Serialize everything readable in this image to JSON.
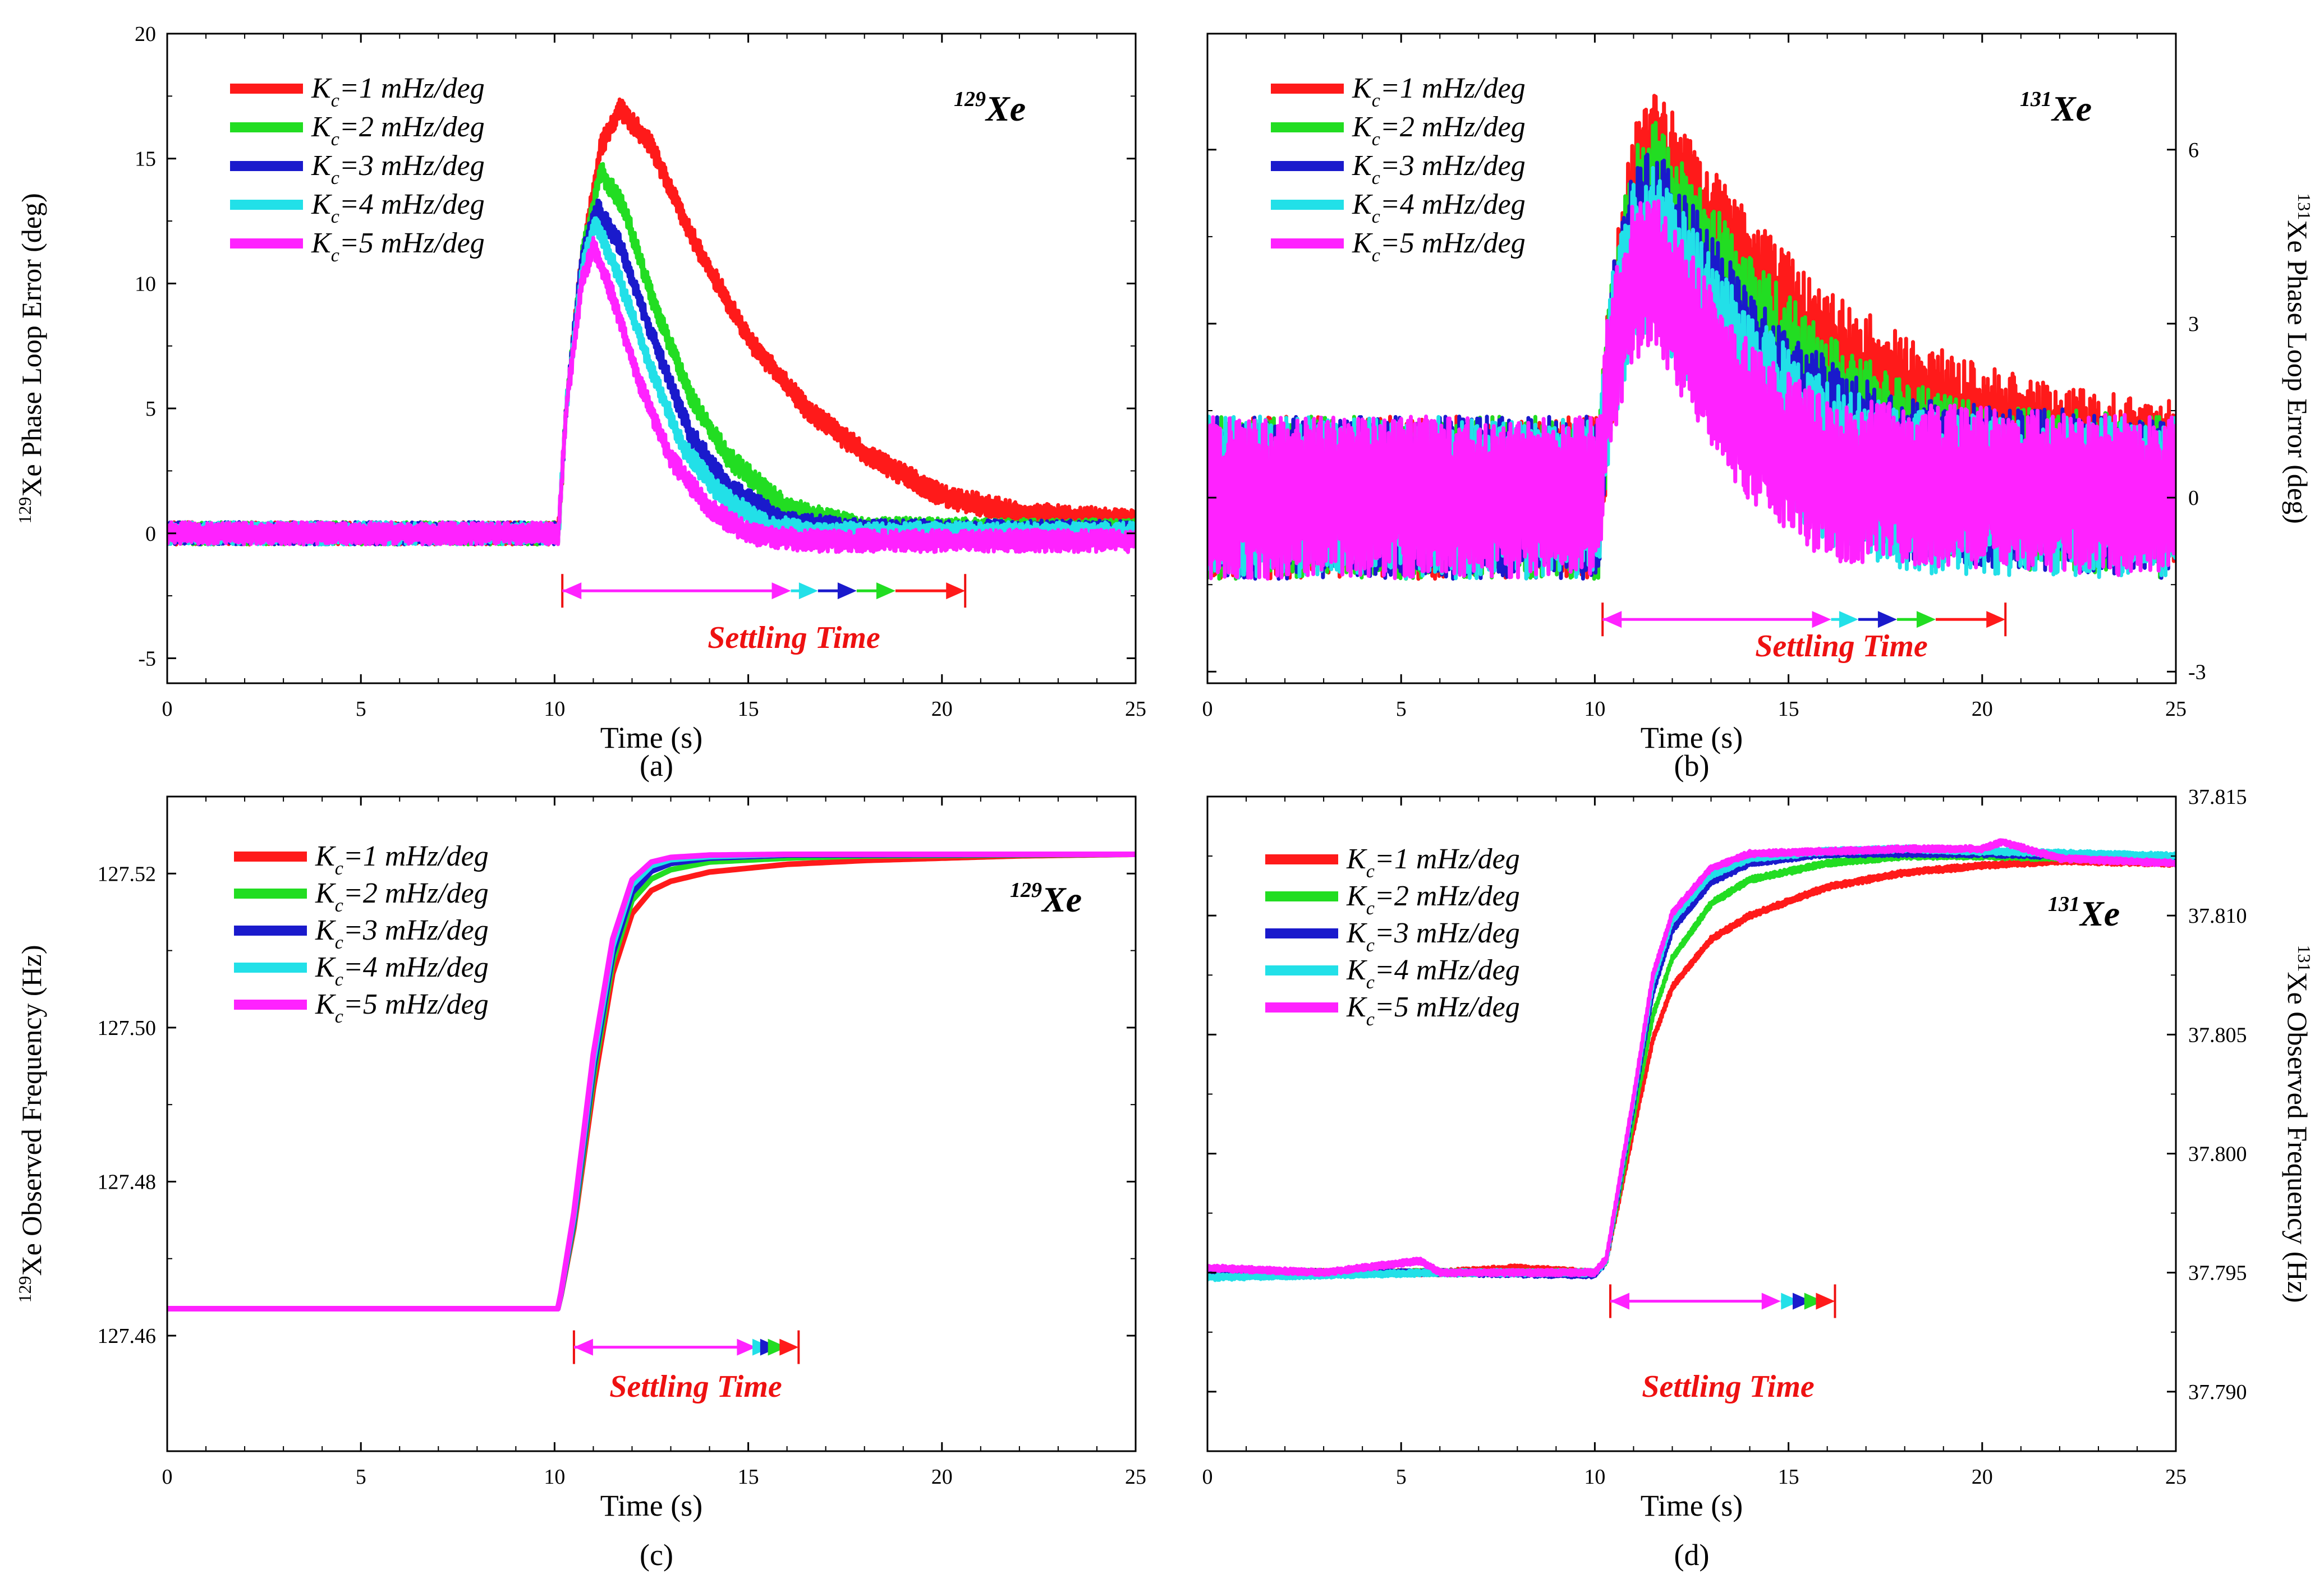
{
  "colors": {
    "k1": "#ff1a1a",
    "k2": "#22dd22",
    "k3": "#1a1acc",
    "k4": "#22e0e8",
    "k5": "#ff22ff",
    "annotation": "#ee1111",
    "axis": "#000000"
  },
  "legend": {
    "k_symbol": "K",
    "k_subscript": "c",
    "entries": [
      "=1 mHz/deg",
      "=2 mHz/deg",
      "=3 mHz/deg",
      "=4 mHz/deg",
      "=5 mHz/deg"
    ]
  },
  "chart_data": [
    {
      "type": "line",
      "panel_label": "(a)",
      "ylabel_sup": "129",
      "ylabel": "Xe Phase Loop Error (deg)",
      "xlabel": "Time (s)",
      "isotope_sup": "129",
      "isotope": "Xe",
      "annotation": "Settling Time",
      "xlim": [
        0,
        25
      ],
      "ylim": [
        -6,
        20
      ],
      "xticks": [
        0,
        5,
        10,
        15,
        20,
        25
      ],
      "yticks": [
        -5,
        0,
        5,
        10,
        15,
        20
      ],
      "y_axis_side": "left",
      "legend_position": "top-left",
      "step_time_s": 10.2,
      "settling_time_s": [
        20.6,
        18.8,
        17.8,
        16.8,
        16.1
      ],
      "series": [
        {
          "name": "Kc=1 mHz/deg",
          "x": [
            0,
            10.1,
            10.3,
            10.7,
            11.2,
            11.7,
            12.5,
            13.5,
            15,
            16.5,
            18,
            20,
            22,
            25
          ],
          "y": [
            0,
            0,
            5,
            11,
            15.5,
            17,
            15.5,
            12,
            7.8,
            5,
            3.2,
            1.5,
            0.8,
            0.5
          ],
          "amplitude": 0.45
        },
        {
          "name": "Kc=2 mHz/deg",
          "x": [
            0,
            10.1,
            10.3,
            10.7,
            11.2,
            11.8,
            12.5,
            13.5,
            14.5,
            16,
            18,
            25
          ],
          "y": [
            0,
            0,
            5,
            11,
            14.5,
            13,
            9.5,
            5.5,
            3,
            1,
            0.2,
            0.1
          ],
          "amplitude": 0.45
        },
        {
          "name": "Kc=3 mHz/deg",
          "x": [
            0,
            10.1,
            10.3,
            10.7,
            11.1,
            11.7,
            12.5,
            13.5,
            14.5,
            16,
            18,
            25
          ],
          "y": [
            0,
            0,
            5,
            11,
            13,
            11.5,
            8,
            4,
            1.8,
            0.4,
            0.1,
            0.05
          ],
          "amplitude": 0.45
        },
        {
          "name": "Kc=4 mHz/deg",
          "x": [
            0,
            10.1,
            10.3,
            10.7,
            11.05,
            11.6,
            12.4,
            13.3,
            14.3,
            15.5,
            17,
            25
          ],
          "y": [
            0,
            0,
            5,
            10.5,
            12.5,
            10.5,
            7,
            3.5,
            1.5,
            0.3,
            0,
            0
          ],
          "amplitude": 0.45
        },
        {
          "name": "Kc=5 mHz/deg",
          "x": [
            0,
            10.1,
            10.3,
            10.7,
            11,
            11.5,
            12.2,
            13,
            14,
            15,
            16.5,
            25
          ],
          "y": [
            0,
            0,
            5,
            10,
            11.5,
            9.5,
            6,
            3,
            1,
            0,
            -0.3,
            -0.3
          ],
          "amplitude": 0.45
        }
      ]
    },
    {
      "type": "line",
      "panel_label": "(b)",
      "ylabel_sup": "131",
      "ylabel": "Xe Phase Loop Error (deg)",
      "xlabel": "Time (s)",
      "isotope_sup": "131",
      "isotope": "Xe",
      "annotation": "Settling Time",
      "xlim": [
        0,
        25
      ],
      "ylim": [
        -3.2,
        8
      ],
      "xticks": [
        0,
        5,
        10,
        15,
        20,
        25
      ],
      "yticks": [
        -3,
        0,
        3,
        6
      ],
      "y_axis_side": "right",
      "legend_position": "top-left",
      "step_time_s": 10.2,
      "settling_time_s": [
        20.6,
        18.8,
        17.8,
        16.8,
        16.1
      ],
      "series": [
        {
          "name": "Kc=1 mHz/deg",
          "x": [
            0,
            10.1,
            10.4,
            11,
            11.6,
            12.5,
            14,
            16,
            18,
            20,
            22,
            25
          ],
          "y": [
            0,
            0,
            2.5,
            5,
            5.6,
            4.8,
            3.5,
            2.2,
            1.4,
            0.9,
            0.5,
            0.3
          ],
          "amplitude": 1.4
        },
        {
          "name": "Kc=2 mHz/deg",
          "x": [
            0,
            10.1,
            10.4,
            11,
            11.6,
            12.5,
            14,
            16,
            18,
            20,
            25
          ],
          "y": [
            0,
            0,
            2.5,
            4.6,
            5.1,
            4.2,
            2.8,
            1.4,
            0.6,
            0.2,
            0
          ],
          "amplitude": 1.4
        },
        {
          "name": "Kc=3 mHz/deg",
          "x": [
            0,
            10.1,
            10.4,
            11,
            11.5,
            12.5,
            14,
            16,
            18,
            25
          ],
          "y": [
            0,
            0,
            2.5,
            4.3,
            4.7,
            3.7,
            2.2,
            1,
            0.3,
            0
          ],
          "amplitude": 1.4
        },
        {
          "name": "Kc=4 mHz/deg",
          "x": [
            0,
            10.1,
            10.4,
            11,
            11.5,
            12.5,
            14,
            16,
            18,
            25
          ],
          "y": [
            0,
            0,
            2.4,
            4,
            4.3,
            3.3,
            1.8,
            0.6,
            0.1,
            0
          ],
          "amplitude": 1.4
        },
        {
          "name": "Kc=5 mHz/deg",
          "x": [
            0,
            10.1,
            10.4,
            11,
            11.5,
            12.5,
            14,
            16,
            25
          ],
          "y": [
            0,
            0,
            2.3,
            3.7,
            3.9,
            2.8,
            1.3,
            0.3,
            0
          ],
          "amplitude": 1.4
        }
      ]
    },
    {
      "type": "line",
      "panel_label": "(c)",
      "ylabel_sup": "129",
      "ylabel": "Xe Observed Frequency (Hz)",
      "xlabel": "Time (s)",
      "isotope_sup": "129",
      "isotope": "Xe",
      "annotation": "Settling Time",
      "xlim": [
        0,
        25
      ],
      "ylim": [
        127.445,
        127.53
      ],
      "xticks": [
        0,
        5,
        10,
        15,
        20,
        25
      ],
      "yticks": [
        127.46,
        127.48,
        127.5,
        127.52
      ],
      "y_axis_side": "left",
      "legend_position": "top-left",
      "step_time_s": 10.5,
      "settling_time_s": [
        16.3,
        16.0,
        15.8,
        15.6,
        15.2
      ],
      "series": [
        {
          "name": "Kc=1 mHz/deg",
          "x": [
            0,
            10.1,
            10.5,
            11,
            11.5,
            12,
            12.5,
            13,
            14,
            16,
            18,
            20,
            22,
            25
          ],
          "y": [
            127.4635,
            127.4635,
            127.474,
            127.492,
            127.507,
            127.5148,
            127.5178,
            127.519,
            127.5202,
            127.5212,
            127.5217,
            127.522,
            127.5223,
            127.5225
          ],
          "amplitude": 0
        },
        {
          "name": "Kc=2 mHz/deg",
          "x": [
            0,
            10.1,
            10.5,
            11,
            11.5,
            12,
            12.5,
            13,
            14,
            16,
            18,
            25
          ],
          "y": [
            127.4635,
            127.4635,
            127.4745,
            127.4935,
            127.5085,
            127.5165,
            127.5193,
            127.5205,
            127.5215,
            127.522,
            127.5223,
            127.5225
          ],
          "amplitude": 0
        },
        {
          "name": "Kc=3 mHz/deg",
          "x": [
            0,
            10.1,
            10.5,
            11,
            11.5,
            12,
            12.5,
            13,
            14,
            16,
            25
          ],
          "y": [
            127.4635,
            127.4635,
            127.475,
            127.4945,
            127.5095,
            127.5175,
            127.5203,
            127.5213,
            127.522,
            127.5224,
            127.5225
          ],
          "amplitude": 0
        },
        {
          "name": "Kc=4 mHz/deg",
          "x": [
            0,
            10.1,
            10.5,
            11,
            11.5,
            12,
            12.5,
            13,
            14,
            16,
            25
          ],
          "y": [
            127.4635,
            127.4635,
            127.4755,
            127.4955,
            127.5105,
            127.5185,
            127.521,
            127.5218,
            127.5222,
            127.5225,
            127.5225
          ],
          "amplitude": 0
        },
        {
          "name": "Kc=5 mHz/deg",
          "x": [
            0,
            10.1,
            10.5,
            11,
            11.5,
            12,
            12.5,
            13,
            14,
            16,
            25
          ],
          "y": [
            127.4635,
            127.4635,
            127.476,
            127.4965,
            127.5115,
            127.5192,
            127.5215,
            127.5221,
            127.5224,
            127.5225,
            127.5225
          ],
          "amplitude": 0
        }
      ]
    },
    {
      "type": "line",
      "panel_label": "(d)",
      "ylabel_sup": "131",
      "ylabel": "Xe Observed Frequency (Hz)",
      "xlabel": "Time (s)",
      "isotope_sup": "131",
      "isotope": "Xe",
      "annotation": "Settling Time",
      "xlim": [
        0,
        25
      ],
      "ylim": [
        37.7875,
        37.815
      ],
      "xticks": [
        0,
        5,
        10,
        15,
        20,
        25
      ],
      "yticks": [
        37.79,
        37.795,
        37.8,
        37.805,
        37.81,
        37.815
      ],
      "y_axis_side": "right",
      "legend_position": "top-left",
      "step_time_s": 10.4,
      "settling_time_s": [
        16.2,
        15.9,
        15.6,
        15.3,
        14.8
      ],
      "series": [
        {
          "name": "Kc=1 mHz/deg",
          "x": [
            0,
            3,
            6,
            8,
            10,
            10.3,
            11,
            11.5,
            12,
            13,
            14,
            16,
            18,
            20,
            22,
            25
          ],
          "y": [
            37.795,
            37.795,
            37.795,
            37.7952,
            37.795,
            37.7955,
            37.801,
            37.8048,
            37.807,
            37.809,
            37.81,
            37.8112,
            37.8118,
            37.8121,
            37.8123,
            37.8122
          ],
          "amplitude": 0.00012
        },
        {
          "name": "Kc=2 mHz/deg",
          "x": [
            0,
            3,
            6,
            10,
            10.3,
            11,
            11.5,
            12,
            13,
            14,
            16,
            18,
            20,
            25
          ],
          "y": [
            37.795,
            37.795,
            37.795,
            37.795,
            37.7955,
            37.8015,
            37.8058,
            37.8082,
            37.8105,
            37.8115,
            37.8122,
            37.8125,
            37.8125,
            37.8123
          ],
          "amplitude": 0.00012
        },
        {
          "name": "Kc=3 mHz/deg",
          "x": [
            0,
            3,
            6,
            10,
            10.3,
            11,
            11.5,
            12,
            13,
            14,
            16,
            18,
            20,
            25
          ],
          "y": [
            37.795,
            37.795,
            37.795,
            37.7949,
            37.7955,
            37.802,
            37.8068,
            37.8094,
            37.8114,
            37.8122,
            37.8126,
            37.8126,
            37.8126,
            37.8124
          ],
          "amplitude": 0.00012
        },
        {
          "name": "Kc=4 mHz/deg",
          "x": [
            0,
            3,
            6,
            10,
            10.3,
            11,
            11.5,
            12,
            13,
            14,
            16,
            18,
            20,
            25
          ],
          "y": [
            37.7948,
            37.7949,
            37.795,
            37.795,
            37.7955,
            37.8022,
            37.8072,
            37.8098,
            37.8117,
            37.8124,
            37.8127,
            37.8128,
            37.8127,
            37.8125
          ],
          "amplitude": 0.00012
        },
        {
          "name": "Kc=5 mHz/deg",
          "x": [
            0,
            3,
            5.5,
            6,
            10,
            10.3,
            11,
            11.5,
            12,
            13,
            14,
            16,
            18,
            20,
            20.5,
            22,
            25
          ],
          "y": [
            37.7952,
            37.795,
            37.7955,
            37.795,
            37.795,
            37.7956,
            37.8024,
            37.8075,
            37.8101,
            37.812,
            37.8126,
            37.8127,
            37.8128,
            37.8128,
            37.8131,
            37.8124,
            37.8122
          ],
          "amplitude": 0.00012
        }
      ]
    }
  ]
}
